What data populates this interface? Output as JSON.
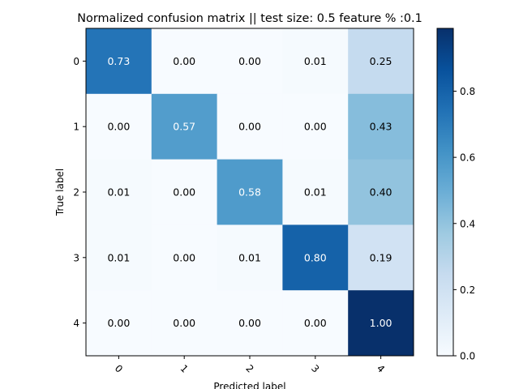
{
  "chart_data": {
    "type": "heatmap",
    "title": "Normalized confusion matrix || test size: 0.5 feature % :0.1",
    "xlabel": "Predicted label",
    "ylabel": "True label",
    "x_ticks": [
      "0",
      "1",
      "2",
      "3",
      "4"
    ],
    "y_ticks": [
      "0",
      "1",
      "2",
      "3",
      "4"
    ],
    "values": [
      [
        0.73,
        0.0,
        0.0,
        0.01,
        0.25
      ],
      [
        0.0,
        0.57,
        0.0,
        0.0,
        0.43
      ],
      [
        0.01,
        0.0,
        0.58,
        0.01,
        0.4
      ],
      [
        0.01,
        0.0,
        0.01,
        0.8,
        0.19
      ],
      [
        0.0,
        0.0,
        0.0,
        0.0,
        1.0
      ]
    ],
    "cell_labels": [
      [
        "0.73",
        "0.00",
        "0.00",
        "0.01",
        "0.25"
      ],
      [
        "0.00",
        "0.57",
        "0.00",
        "0.00",
        "0.43"
      ],
      [
        "0.01",
        "0.00",
        "0.58",
        "0.01",
        "0.40"
      ],
      [
        "0.01",
        "0.00",
        "0.01",
        "0.80",
        "0.19"
      ],
      [
        "0.00",
        "0.00",
        "0.00",
        "0.00",
        "1.00"
      ]
    ],
    "colorbar": {
      "range": [
        0.0,
        0.99
      ],
      "ticks": [
        0.0,
        0.2,
        0.4,
        0.6,
        0.8
      ],
      "tick_labels": [
        "0.0",
        "0.2",
        "0.4",
        "0.6",
        "0.8"
      ],
      "colormap": "Blues"
    },
    "x_tick_rotation": 45,
    "grid": false
  }
}
